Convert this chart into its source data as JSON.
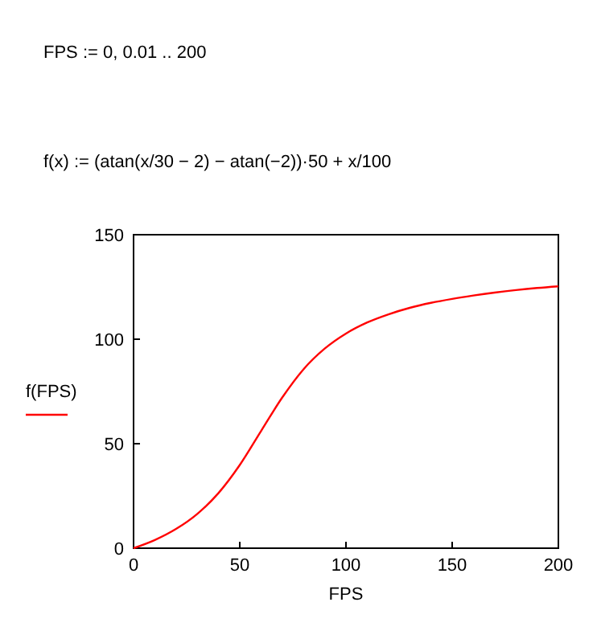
{
  "chart_data": {
    "type": "line",
    "xlabel": "FPS",
    "annotations": [
      "FPS := 0, 0.01 .. 200",
      "f(x) := (atan(x/30 − 2) − atan(−2))·50 + x/100"
    ],
    "x": [
      0,
      10,
      20,
      30,
      40,
      50,
      60,
      70,
      80,
      90,
      100,
      110,
      120,
      130,
      140,
      150,
      160,
      170,
      180,
      190,
      200
    ],
    "series": [
      {
        "name": "f(FPS)",
        "color": "#ff0000",
        "values": [
          0,
          3.9,
          9.2,
          16.4,
          26.4,
          39.8,
          56,
          72.1,
          85.6,
          95.5,
          102.7,
          108,
          111.9,
          115,
          117.4,
          119.3,
          120.9,
          122.3,
          123.5,
          124.5,
          125.3
        ]
      }
    ],
    "xlim": [
      0,
      200
    ],
    "ylim": [
      0,
      150
    ],
    "xticks": [
      0,
      50,
      100,
      150,
      200
    ],
    "yticks": [
      0,
      50,
      100,
      150
    ],
    "grid": false,
    "legend": "left",
    "marker": "none",
    "line_style": "solid"
  }
}
